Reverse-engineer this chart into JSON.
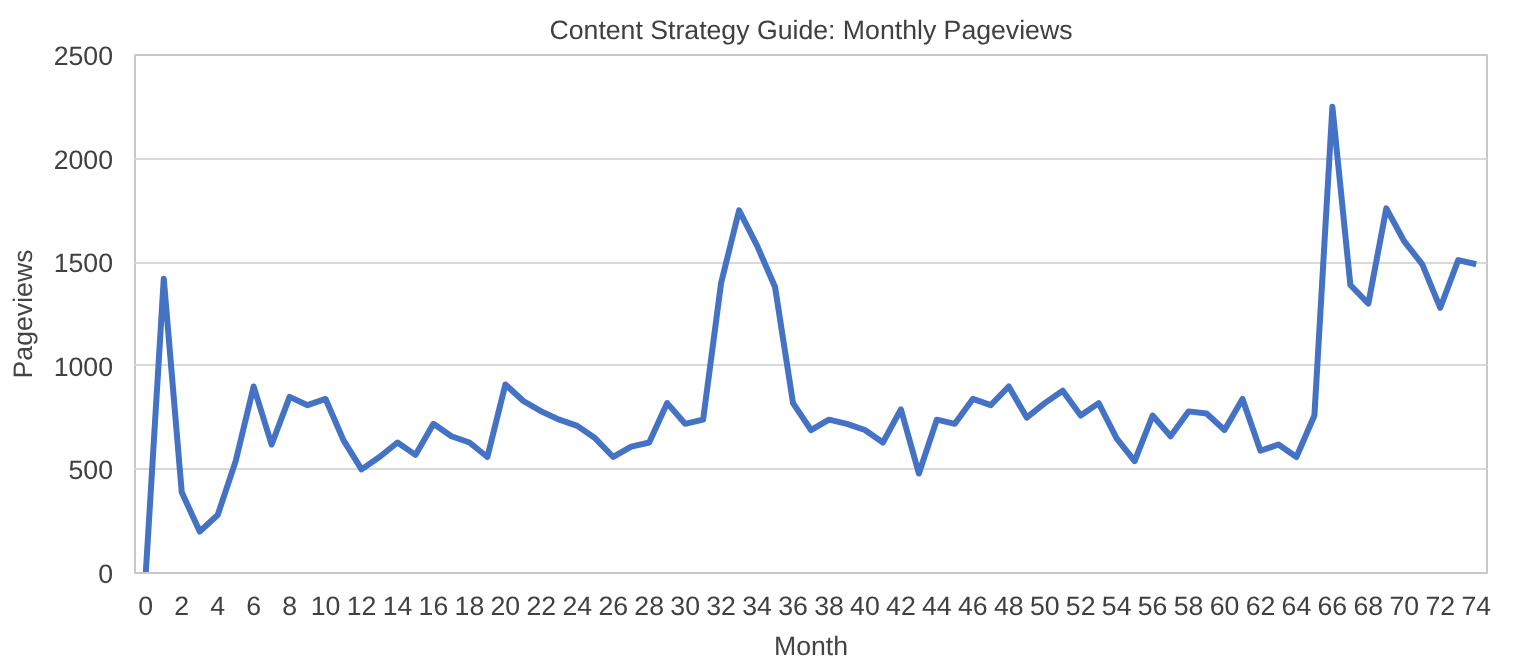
{
  "chart_data": {
    "type": "line",
    "title": "Content Strategy Guide: Monthly Pageviews",
    "xlabel": "Month",
    "ylabel": "Pageviews",
    "x": [
      0,
      1,
      2,
      3,
      4,
      5,
      6,
      7,
      8,
      9,
      10,
      11,
      12,
      13,
      14,
      15,
      16,
      17,
      18,
      19,
      20,
      21,
      22,
      23,
      24,
      25,
      26,
      27,
      28,
      29,
      30,
      31,
      32,
      33,
      34,
      35,
      36,
      37,
      38,
      39,
      40,
      41,
      42,
      43,
      44,
      45,
      46,
      47,
      48,
      49,
      50,
      51,
      52,
      53,
      54,
      55,
      56,
      57,
      58,
      59,
      60,
      61,
      62,
      63,
      64,
      65,
      66,
      67,
      68,
      69,
      70,
      71,
      72,
      73,
      74
    ],
    "series": [
      {
        "color": "#4472c4",
        "values": [
          0,
          1420,
          390,
          200,
          280,
          540,
          900,
          620,
          850,
          810,
          840,
          640,
          500,
          560,
          630,
          570,
          720,
          660,
          630,
          560,
          910,
          830,
          780,
          740,
          710,
          650,
          560,
          610,
          630,
          820,
          720,
          740,
          1400,
          1750,
          1580,
          1380,
          820,
          690,
          740,
          720,
          690,
          630,
          790,
          480,
          740,
          720,
          840,
          810,
          900,
          750,
          820,
          880,
          760,
          820,
          650,
          540,
          760,
          660,
          780,
          770,
          690,
          840,
          590,
          620,
          560,
          760,
          2250,
          1390,
          1300,
          1760,
          1600,
          1490,
          1280,
          1510,
          1490
        ]
      }
    ],
    "xlim": [
      -0.6,
      74.6
    ],
    "xticks": [
      0,
      2,
      4,
      6,
      8,
      10,
      12,
      14,
      16,
      18,
      20,
      22,
      24,
      26,
      28,
      30,
      32,
      34,
      36,
      38,
      40,
      42,
      44,
      46,
      48,
      50,
      52,
      54,
      56,
      58,
      60,
      62,
      64,
      66,
      68,
      70,
      72,
      74
    ],
    "ylim": [
      0,
      2500
    ],
    "yticks": [
      0,
      500,
      1000,
      1500,
      2000,
      2500
    ],
    "grid": "y",
    "marker": "none",
    "line_style": "solid"
  }
}
